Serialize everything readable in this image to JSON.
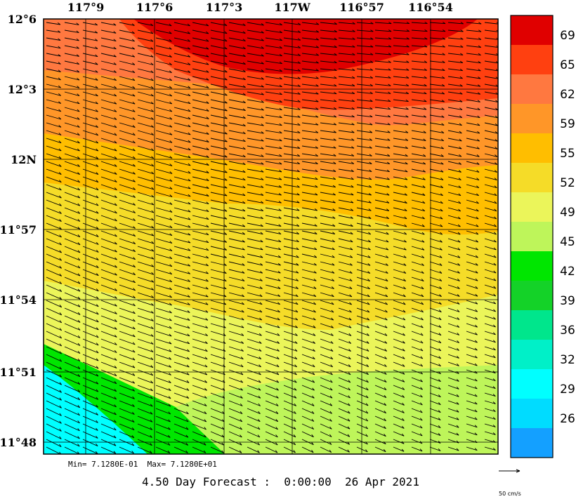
{
  "map": {
    "top_lon_labels": [
      "117°9",
      "117°6",
      "117°3",
      "117W",
      "116°57",
      "116°54"
    ],
    "left_lat_labels": [
      "12°6",
      "12°3",
      "12N",
      "11°57",
      "11°54",
      "11°51",
      "11°48"
    ]
  },
  "colorbar": {
    "colors": [
      "#e00000",
      "#ff4010",
      "#ff7840",
      "#ff9628",
      "#ffbe00",
      "#f5dc28",
      "#ebf55a",
      "#bef55a",
      "#00e600",
      "#14d228",
      "#00e68c",
      "#00f0c8",
      "#00ffff",
      "#00dcff",
      "#14a0ff"
    ],
    "labels": [
      "69",
      "65",
      "62",
      "59",
      "55",
      "52",
      "49",
      "45",
      "42",
      "39",
      "36",
      "32",
      "29",
      "26"
    ]
  },
  "field_stats": {
    "min": "Min= 7.1280E-01",
    "max": "Max= 7.1280E+01"
  },
  "footer": {
    "forecast": "4.50 Day Forecast :  0:00:00  26 Apr 2021",
    "vector_scale": "50 cm/s"
  }
}
